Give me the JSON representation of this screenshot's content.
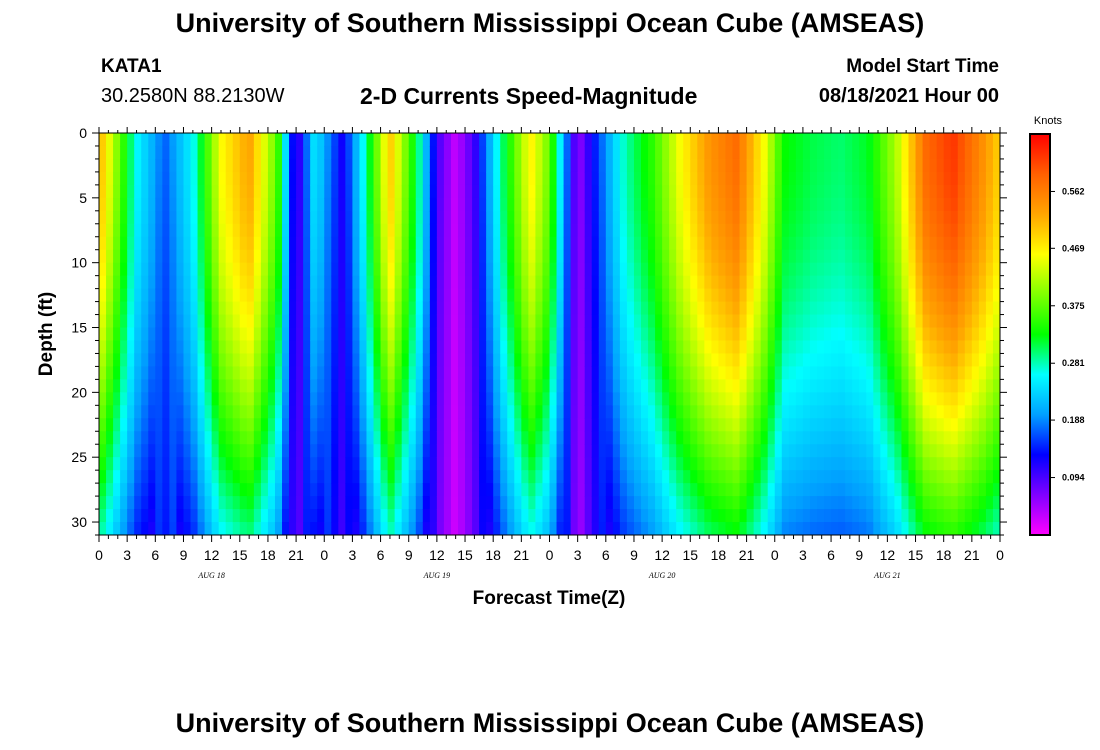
{
  "header": {
    "title": "University of Southern Mississippi Ocean Cube (AMSEAS)",
    "station": "KATA1",
    "coords": "30.2580N  88.2130W",
    "subtitle": "2-D Currents Speed-Magnitude",
    "model_start_label": "Model Start Time",
    "model_start_date": "08/18/2021 Hour 00"
  },
  "footer": {
    "title": "University of Southern Mississippi Ocean Cube (AMSEAS)"
  },
  "chart_data": {
    "type": "heatmap",
    "title": "2-D Currents Speed-Magnitude",
    "xlabel": "Forecast Time(Z)",
    "ylabel": "Depth (ft)",
    "x_tick_labels": [
      "0",
      "3",
      "6",
      "9",
      "12",
      "15",
      "18",
      "21",
      "0",
      "3",
      "6",
      "9",
      "12",
      "15",
      "18",
      "21",
      "0",
      "3",
      "6",
      "9",
      "12",
      "15",
      "18",
      "21",
      "0",
      "3",
      "6",
      "9",
      "12",
      "15",
      "18",
      "21",
      "0"
    ],
    "x_range_hours": [
      0,
      96
    ],
    "date_labels": [
      {
        "text": "AUG 18",
        "hour": 12
      },
      {
        "text": "AUG 19",
        "hour": 36
      },
      {
        "text": "AUG 20",
        "hour": 60
      },
      {
        "text": "AUG 21",
        "hour": 84
      }
    ],
    "y_ticks": [
      0,
      5,
      10,
      15,
      20,
      25,
      30
    ],
    "ylim": [
      0,
      31
    ],
    "y_inverted": true,
    "colorbar": {
      "unit": "Knots",
      "ticks": [
        0.094,
        0.188,
        0.281,
        0.375,
        0.469,
        0.562
      ],
      "range": [
        0,
        0.656
      ],
      "colors": [
        "#ff00ff",
        "#8000ff",
        "#0000ff",
        "#00a0ff",
        "#00ffff",
        "#00ff00",
        "#80ff00",
        "#ffff00",
        "#ffa500",
        "#ff6000",
        "#ff0000"
      ]
    },
    "surface_speed_knots": [
      {
        "hour": 0,
        "v": 0.52
      },
      {
        "hour": 4,
        "v": 0.26
      },
      {
        "hour": 7,
        "v": 0.17
      },
      {
        "hour": 10,
        "v": 0.26
      },
      {
        "hour": 13,
        "v": 0.46
      },
      {
        "hour": 16,
        "v": 0.53
      },
      {
        "hour": 19,
        "v": 0.37
      },
      {
        "hour": 21,
        "v": 0.08
      },
      {
        "hour": 23,
        "v": 0.25
      },
      {
        "hour": 26,
        "v": 0.12
      },
      {
        "hour": 28,
        "v": 0.25
      },
      {
        "hour": 31,
        "v": 0.5
      },
      {
        "hour": 34,
        "v": 0.3
      },
      {
        "hour": 36,
        "v": 0.1
      },
      {
        "hour": 38,
        "v": 0.03
      },
      {
        "hour": 40,
        "v": 0.1
      },
      {
        "hour": 43,
        "v": 0.3
      },
      {
        "hour": 46,
        "v": 0.47
      },
      {
        "hour": 48,
        "v": 0.38
      },
      {
        "hour": 51,
        "v": 0.05
      },
      {
        "hour": 53,
        "v": 0.15
      },
      {
        "hour": 56,
        "v": 0.28
      },
      {
        "hour": 59,
        "v": 0.35
      },
      {
        "hour": 62,
        "v": 0.46
      },
      {
        "hour": 65,
        "v": 0.54
      },
      {
        "hour": 68,
        "v": 0.58
      },
      {
        "hour": 71,
        "v": 0.45
      },
      {
        "hour": 73,
        "v": 0.33
      },
      {
        "hour": 76,
        "v": 0.31
      },
      {
        "hour": 79,
        "v": 0.3
      },
      {
        "hour": 82,
        "v": 0.32
      },
      {
        "hour": 85,
        "v": 0.42
      },
      {
        "hour": 88,
        "v": 0.58
      },
      {
        "hour": 91,
        "v": 0.62
      },
      {
        "hour": 94,
        "v": 0.55
      },
      {
        "hour": 96,
        "v": 0.49
      }
    ]
  }
}
